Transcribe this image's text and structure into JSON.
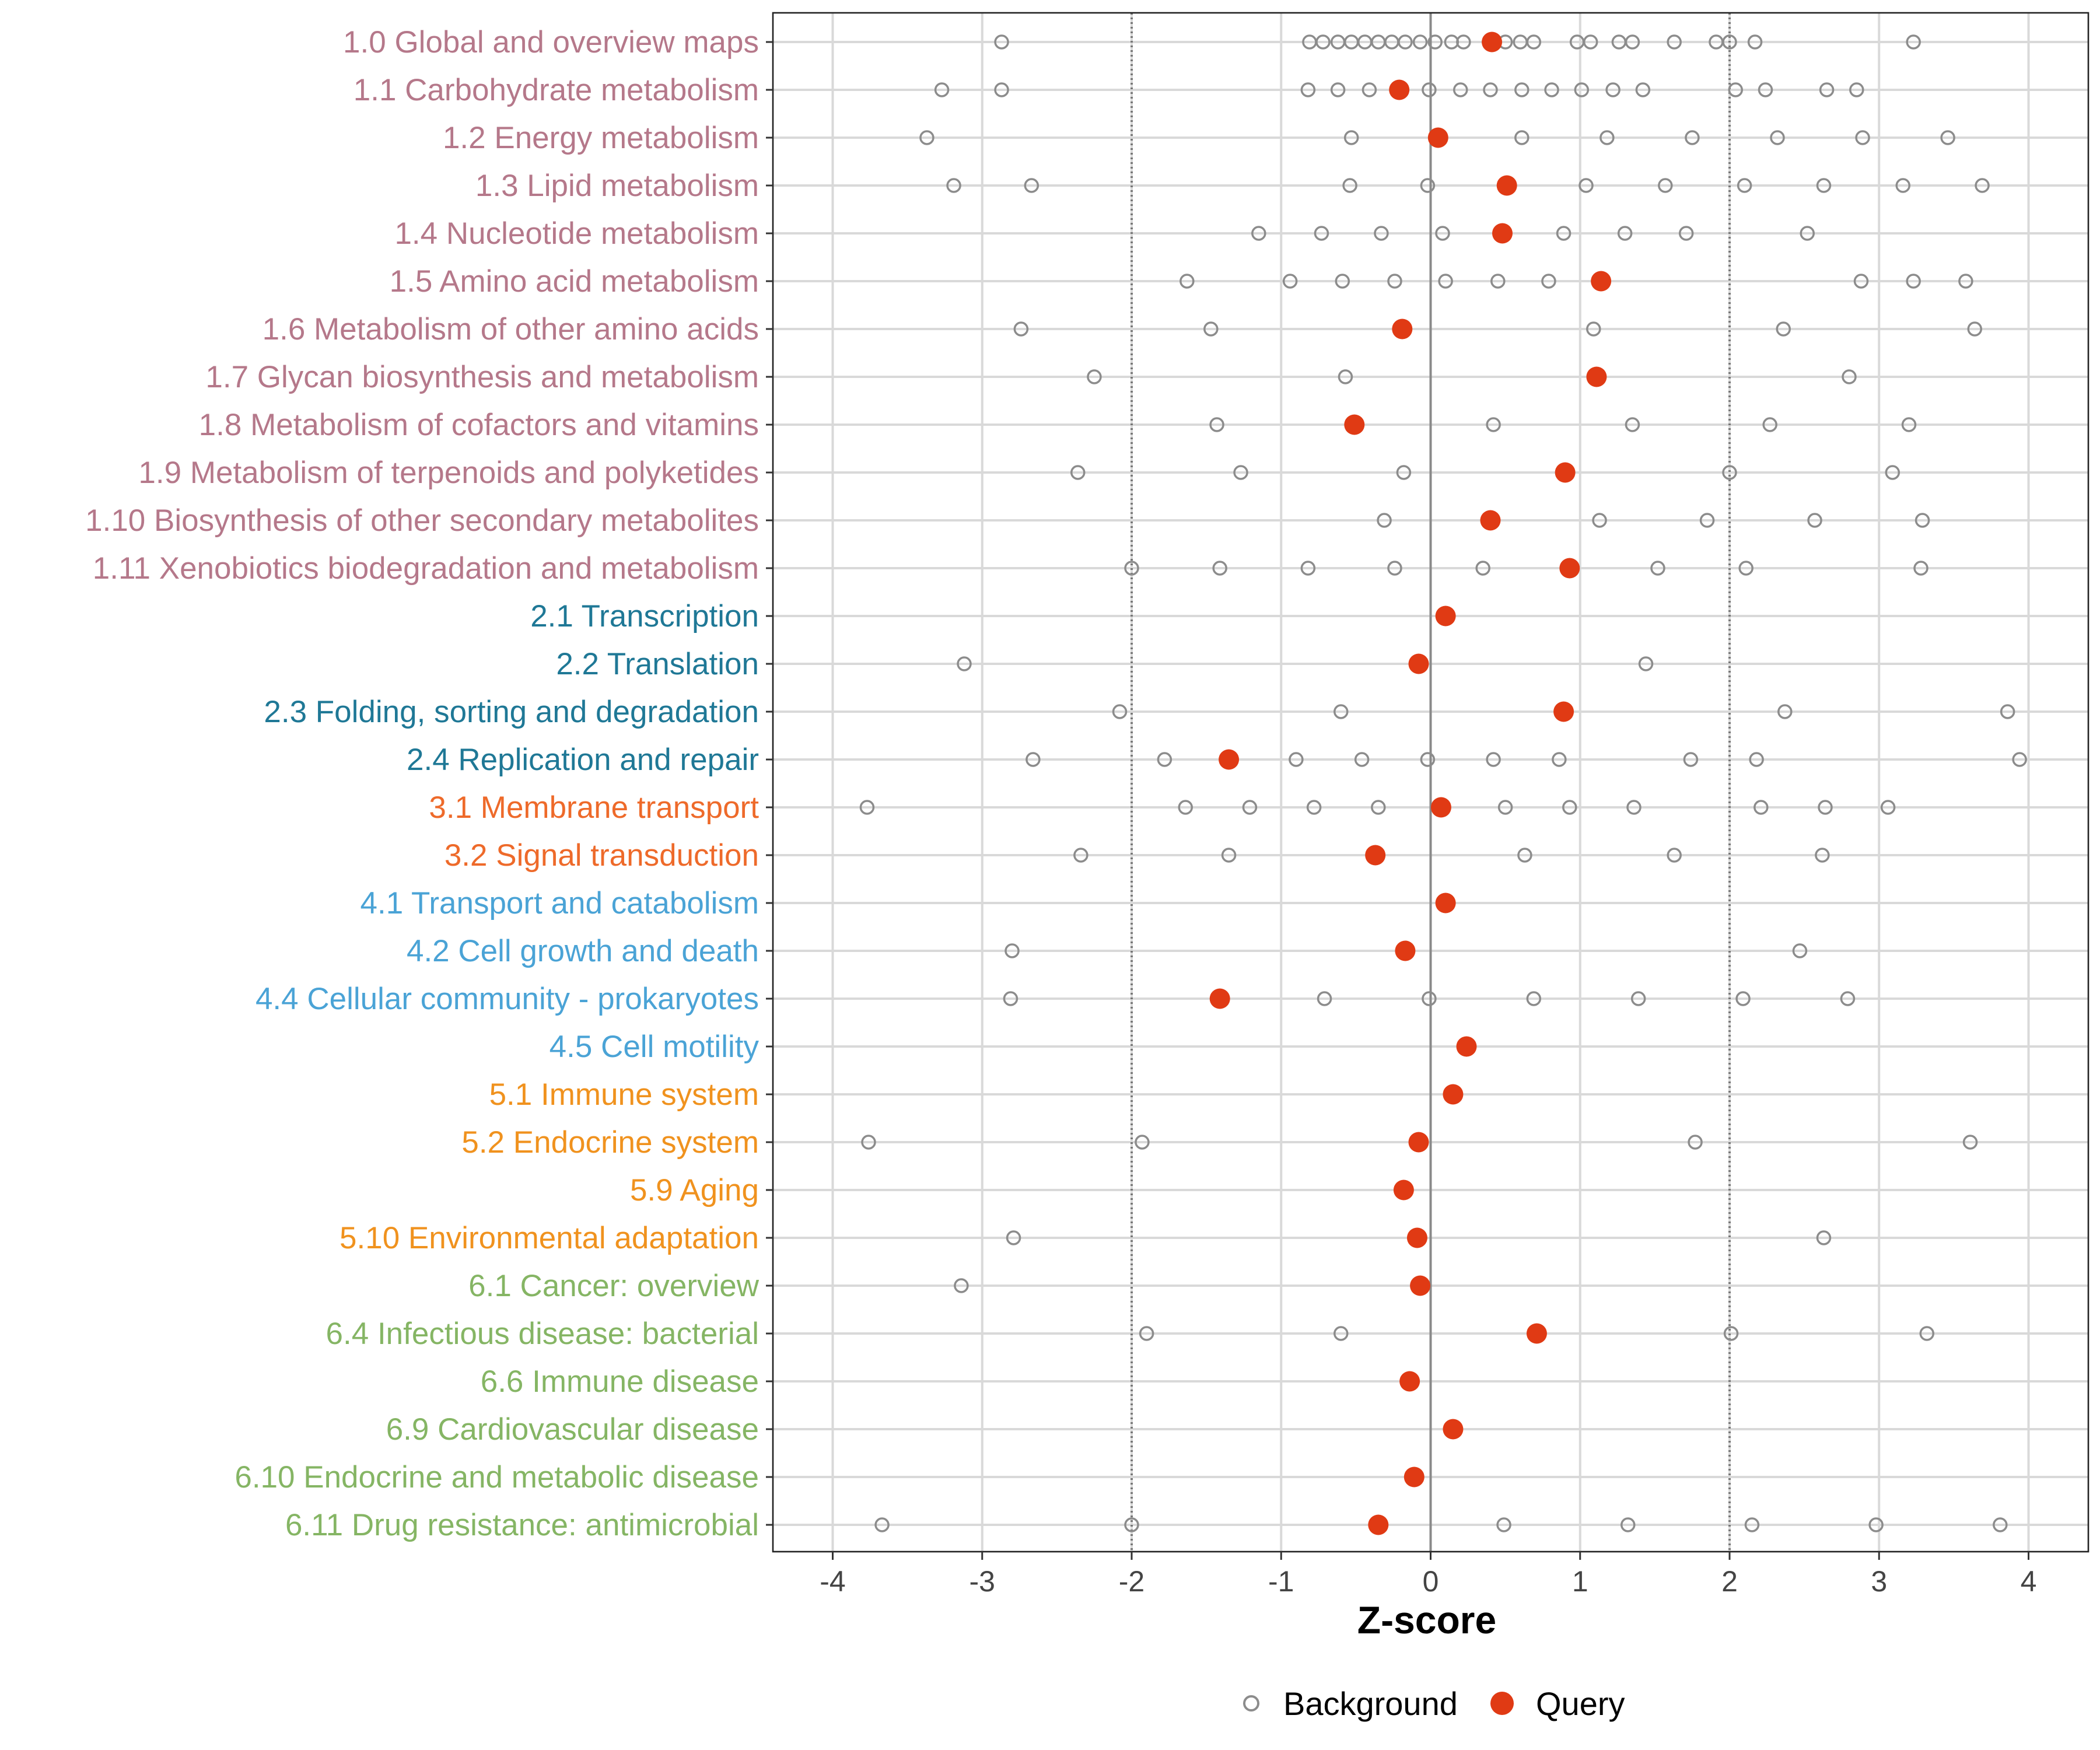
{
  "chart_data": {
    "type": "scatter",
    "title": "",
    "xlabel": "Z-score",
    "ylabel": "",
    "xlim": [
      -4.4,
      4.4
    ],
    "xticks": [
      -4,
      -3,
      -2,
      -1,
      0,
      1,
      2,
      3,
      4
    ],
    "xtick_labels": [
      "-4",
      "-3",
      "-2",
      "-1",
      "0",
      "1",
      "2",
      "3",
      "4"
    ],
    "reference_lines": {
      "solid": [
        0
      ],
      "dotted": [
        -2,
        2
      ]
    },
    "grid": true,
    "legend": {
      "position": "bottom",
      "entries": [
        {
          "key": "background",
          "label": "Background",
          "marker": "open-circle"
        },
        {
          "key": "query",
          "label": "Query",
          "marker": "filled-circle"
        }
      ]
    },
    "colors": {
      "background_marker": "#8c8c8c",
      "query_marker": "#e03a14",
      "grid": "#d9d9d9",
      "zero_line": "#8a8a8a",
      "categories": {
        "metabolism": "#b5788a",
        "genetic": "#1f7896",
        "environmental": "#ee6a2a",
        "cellular": "#4aa3d6",
        "organismal": "#f0921e",
        "disease": "#85b564"
      }
    },
    "rows": [
      {
        "label": "1.0 Global and overview maps",
        "group": "metabolism",
        "query": 0.41,
        "background": [
          -2.87,
          -0.81,
          -0.72,
          -0.62,
          -0.53,
          -0.44,
          -0.35,
          -0.26,
          -0.17,
          -0.07,
          0.03,
          0.14,
          0.22,
          0.5,
          0.6,
          0.69,
          0.98,
          1.07,
          1.26,
          1.35,
          1.63,
          1.91,
          2.0,
          2.17,
          3.23
        ]
      },
      {
        "label": "1.1 Carbohydrate metabolism",
        "group": "metabolism",
        "query": -0.21,
        "background": [
          -3.27,
          -2.87,
          -0.82,
          -0.62,
          -0.41,
          -0.01,
          0.2,
          0.4,
          0.61,
          0.81,
          1.01,
          1.22,
          1.42,
          2.04,
          2.24,
          2.65,
          2.85
        ]
      },
      {
        "label": "1.2 Energy metabolism",
        "group": "metabolism",
        "query": 0.05,
        "background": [
          -3.37,
          -0.53,
          0.61,
          1.18,
          1.75,
          2.32,
          2.89,
          3.46
        ]
      },
      {
        "label": "1.3 Lipid metabolism",
        "group": "metabolism",
        "query": 0.51,
        "background": [
          -3.19,
          -2.67,
          -0.54,
          -0.02,
          1.04,
          1.57,
          2.1,
          2.63,
          3.16,
          3.69
        ]
      },
      {
        "label": "1.4 Nucleotide metabolism",
        "group": "metabolism",
        "query": 0.48,
        "background": [
          -1.15,
          -0.73,
          -0.33,
          0.08,
          0.89,
          1.3,
          1.71,
          2.52
        ]
      },
      {
        "label": "1.5 Amino acid metabolism",
        "group": "metabolism",
        "query": 1.14,
        "background": [
          -1.63,
          -0.94,
          -0.59,
          -0.24,
          0.1,
          0.45,
          0.79,
          2.88,
          3.23,
          3.58
        ]
      },
      {
        "label": "1.6 Metabolism of other amino acids",
        "group": "metabolism",
        "query": -0.19,
        "background": [
          -2.74,
          -1.47,
          1.09,
          2.36,
          3.64
        ]
      },
      {
        "label": "1.7 Glycan biosynthesis and metabolism",
        "group": "metabolism",
        "query": 1.11,
        "background": [
          -2.25,
          -0.57,
          2.8
        ]
      },
      {
        "label": "1.8 Metabolism of cofactors and vitamins",
        "group": "metabolism",
        "query": -0.51,
        "background": [
          -1.43,
          0.42,
          1.35,
          2.27,
          3.2
        ]
      },
      {
        "label": "1.9 Metabolism of terpenoids and polyketides",
        "group": "metabolism",
        "query": 0.9,
        "background": [
          -2.36,
          -1.27,
          -0.18,
          2.0,
          3.09
        ]
      },
      {
        "label": "1.10 Biosynthesis of other secondary metabolites",
        "group": "metabolism",
        "query": 0.4,
        "background": [
          -0.31,
          1.13,
          1.85,
          2.57,
          3.29
        ]
      },
      {
        "label": "1.11 Xenobiotics biodegradation and metabolism",
        "group": "metabolism",
        "query": 0.93,
        "background": [
          -2.0,
          -1.41,
          -0.82,
          -0.24,
          0.35,
          1.52,
          2.11,
          3.28
        ]
      },
      {
        "label": "2.1 Transcription",
        "group": "genetic",
        "query": 0.1,
        "background": []
      },
      {
        "label": "2.2 Translation",
        "group": "genetic",
        "query": -0.08,
        "background": [
          -3.12,
          1.44
        ]
      },
      {
        "label": "2.3 Folding, sorting and degradation",
        "group": "genetic",
        "query": 0.89,
        "background": [
          -2.08,
          -0.6,
          2.37,
          3.86
        ]
      },
      {
        "label": "2.4 Replication and repair",
        "group": "genetic",
        "query": -1.35,
        "background": [
          -2.66,
          -1.78,
          -0.9,
          -0.46,
          -0.02,
          0.42,
          0.86,
          1.74,
          2.18,
          3.94
        ]
      },
      {
        "label": "3.1 Membrane transport",
        "group": "environmental",
        "query": 0.07,
        "background": [
          -3.77,
          -1.64,
          -1.21,
          -0.78,
          -0.35,
          0.5,
          0.93,
          1.36,
          2.21,
          2.64,
          3.06
        ]
      },
      {
        "label": "3.2 Signal transduction",
        "group": "environmental",
        "query": -0.37,
        "background": [
          -2.34,
          -1.35,
          0.63,
          1.63,
          2.62
        ]
      },
      {
        "label": "4.1 Transport and catabolism",
        "group": "cellular",
        "query": 0.1,
        "background": []
      },
      {
        "label": "4.2 Cell growth and death",
        "group": "cellular",
        "query": -0.17,
        "background": [
          -2.8,
          2.47
        ]
      },
      {
        "label": "4.4 Cellular community - prokaryotes",
        "group": "cellular",
        "query": -1.41,
        "background": [
          -2.81,
          -0.71,
          -0.01,
          0.69,
          1.39,
          2.09,
          2.79
        ]
      },
      {
        "label": "4.5 Cell motility",
        "group": "cellular",
        "query": 0.24,
        "background": []
      },
      {
        "label": "5.1 Immune system",
        "group": "organismal",
        "query": 0.15,
        "background": []
      },
      {
        "label": "5.2 Endocrine system",
        "group": "organismal",
        "query": -0.08,
        "background": [
          -3.76,
          -1.93,
          1.77,
          3.61
        ]
      },
      {
        "label": "5.9 Aging",
        "group": "organismal",
        "query": -0.18,
        "background": []
      },
      {
        "label": "5.10 Environmental adaptation",
        "group": "organismal",
        "query": -0.09,
        "background": [
          -2.79,
          2.63
        ]
      },
      {
        "label": "6.1 Cancer: overview",
        "group": "disease",
        "query": -0.07,
        "background": [
          -3.14
        ]
      },
      {
        "label": "6.4 Infectious disease: bacterial",
        "group": "disease",
        "query": 0.71,
        "background": [
          -1.9,
          -0.6,
          2.01,
          3.32
        ]
      },
      {
        "label": "6.6 Immune disease",
        "group": "disease",
        "query": -0.14,
        "background": []
      },
      {
        "label": "6.9 Cardiovascular disease",
        "group": "disease",
        "query": 0.15,
        "background": []
      },
      {
        "label": "6.10 Endocrine and metabolic disease",
        "group": "disease",
        "query": -0.11,
        "background": []
      },
      {
        "label": "6.11 Drug resistance: antimicrobial",
        "group": "disease",
        "query": -0.35,
        "background": [
          -3.67,
          -2.0,
          0.49,
          1.32,
          2.15,
          2.98,
          3.81
        ]
      }
    ]
  }
}
